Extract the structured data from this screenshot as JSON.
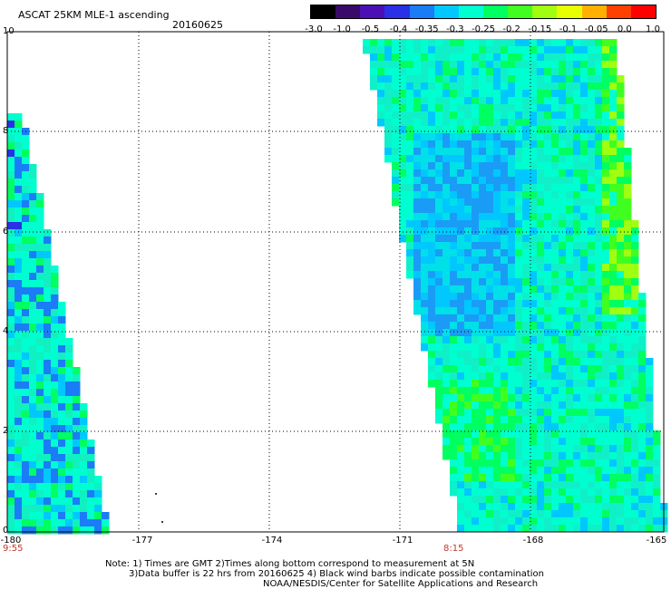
{
  "title": "ASCAT 25KM MLE-1 ascending",
  "date": "20160625",
  "colorbar": {
    "labels": [
      "-3.0",
      "-1.0",
      "-0.5",
      "-0.4",
      "-0.35",
      "-0.3",
      "-0.25",
      "-0.2",
      "-0.15",
      "-0.1",
      "-0.05",
      "0.0",
      "1.0"
    ],
    "colors": [
      "#000000",
      "#3a0a6a",
      "#4b0fb5",
      "#2a30e6",
      "#1a7cf6",
      "#00c8ff",
      "#00ffd0",
      "#00ff60",
      "#40ff20",
      "#a0ff10",
      "#e8ff00",
      "#ffb000",
      "#ff4000",
      "#ff0000"
    ]
  },
  "axes": {
    "y_ticks": [
      "10",
      "8",
      "6",
      "4",
      "2",
      "0"
    ],
    "x_ticks": [
      "-180",
      "-177",
      "-174",
      "-171",
      "-168",
      "-165"
    ]
  },
  "pass_times": [
    "9:55",
    "8:15"
  ],
  "notes": [
    "Note: 1) Times are GMT 2)Times along bottom correspond to measurement at 5N",
    "3)Data buffer is 22 hrs from 20160625 4) Black wind barbs indicate possible contamination",
    "NOAA/NESDIS/Center for Satellite Applications and Research"
  ]
}
